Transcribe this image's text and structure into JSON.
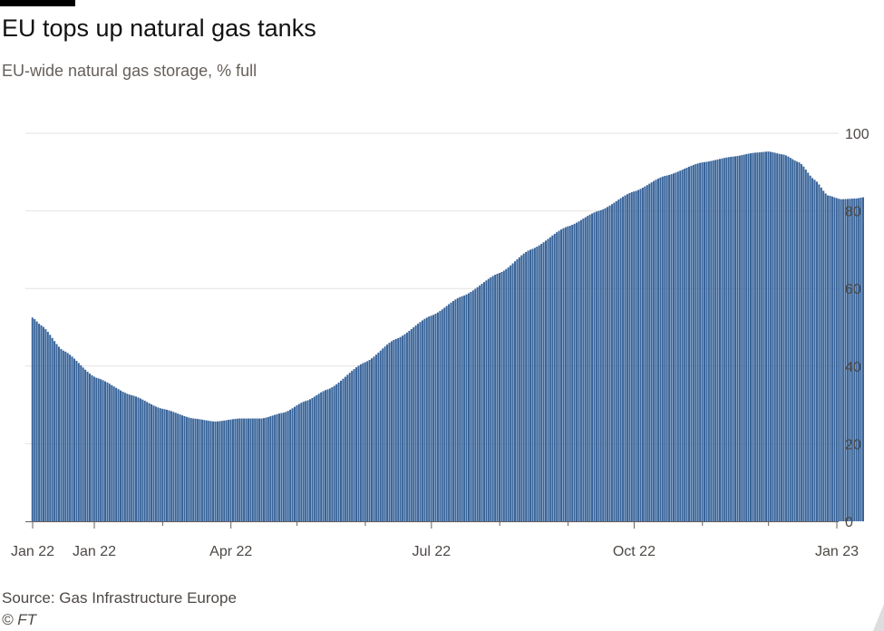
{
  "header": {
    "title": "EU tops up natural gas tanks",
    "subtitle": "EU-wide natural gas storage, % full"
  },
  "footer": {
    "source": "Source: Gas Infrastructure Europe",
    "credit": "© FT"
  },
  "colors": {
    "bar": "#38649a",
    "grid": "#e6e2df",
    "axis": "#66605c",
    "text": "#4d4845"
  },
  "chart_data": {
    "type": "bar",
    "title": "EU tops up natural gas tanks",
    "subtitle": "EU-wide natural gas storage, % full",
    "ylim": [
      0,
      100
    ],
    "y_ticks": [
      0,
      20,
      40,
      60,
      80,
      100
    ],
    "y_tick_labels": [
      "0",
      "20",
      "40",
      "60",
      "80",
      "100"
    ],
    "y_axis_position": "right",
    "grid": true,
    "x_ticks": [
      {
        "x": "2022-01-01",
        "label": "Jan 22"
      },
      {
        "x": "2022-01-29",
        "label": "Jan 22"
      },
      {
        "x": "2022-04-01",
        "label": "Apr 22"
      },
      {
        "x": "2022-07-01",
        "label": "Jul 22"
      },
      {
        "x": "2022-10-01",
        "label": "Oct 22"
      },
      {
        "x": "2023-01-01",
        "label": "Jan 23"
      }
    ],
    "x_minor_ticks": [
      "2022-03-01",
      "2022-05-01",
      "2022-06-01",
      "2022-08-01",
      "2022-09-01",
      "2022-11-01",
      "2022-12-01"
    ],
    "series_anchor_points": [
      {
        "x": "2022-01-01",
        "y": 52.5
      },
      {
        "x": "2022-01-05",
        "y": 50.5
      },
      {
        "x": "2022-01-15",
        "y": 44
      },
      {
        "x": "2022-01-30",
        "y": 37
      },
      {
        "x": "2022-02-15",
        "y": 32.5
      },
      {
        "x": "2022-03-01",
        "y": 29
      },
      {
        "x": "2022-03-15",
        "y": 26.5
      },
      {
        "x": "2022-03-25",
        "y": 25.7
      },
      {
        "x": "2022-04-05",
        "y": 26.5
      },
      {
        "x": "2022-04-15",
        "y": 26.5
      },
      {
        "x": "2022-04-25",
        "y": 28
      },
      {
        "x": "2022-05-05",
        "y": 31
      },
      {
        "x": "2022-05-15",
        "y": 34
      },
      {
        "x": "2022-06-01",
        "y": 41
      },
      {
        "x": "2022-06-15",
        "y": 47
      },
      {
        "x": "2022-07-01",
        "y": 53
      },
      {
        "x": "2022-07-15",
        "y": 58
      },
      {
        "x": "2022-08-01",
        "y": 64
      },
      {
        "x": "2022-08-15",
        "y": 70
      },
      {
        "x": "2022-09-01",
        "y": 76
      },
      {
        "x": "2022-09-15",
        "y": 80
      },
      {
        "x": "2022-10-01",
        "y": 85
      },
      {
        "x": "2022-10-15",
        "y": 89
      },
      {
        "x": "2022-11-01",
        "y": 92.5
      },
      {
        "x": "2022-11-15",
        "y": 94
      },
      {
        "x": "2022-11-25",
        "y": 95
      },
      {
        "x": "2022-12-01",
        "y": 95.3
      },
      {
        "x": "2022-12-08",
        "y": 94.5
      },
      {
        "x": "2022-12-15",
        "y": 92.5
      },
      {
        "x": "2022-12-22",
        "y": 88
      },
      {
        "x": "2022-12-28",
        "y": 84
      },
      {
        "x": "2023-01-03",
        "y": 83
      },
      {
        "x": "2023-01-10",
        "y": 83.2
      },
      {
        "x": "2023-01-13",
        "y": 83.5
      }
    ]
  }
}
